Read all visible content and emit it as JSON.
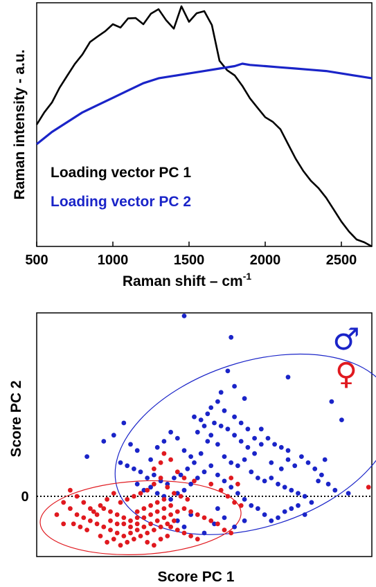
{
  "chart_data": [
    {
      "type": "line",
      "xlabel": "Raman shift – cm",
      "xlabel_sup": "-1",
      "ylabel": "Raman intensity  -  a.u.",
      "xlim": [
        500,
        2700
      ],
      "ylim": [
        0,
        1
      ],
      "x_ticks": [
        "500",
        "1000",
        "1500",
        "2000",
        "2500"
      ],
      "grid": false,
      "legend_position": "center-left",
      "series": [
        {
          "name": "Loading vector PC 1",
          "color": "#000000",
          "x": [
            500,
            550,
            600,
            650,
            700,
            750,
            800,
            850,
            900,
            950,
            1000,
            1050,
            1100,
            1150,
            1200,
            1250,
            1300,
            1350,
            1400,
            1450,
            1500,
            1550,
            1600,
            1650,
            1700,
            1750,
            1800,
            1850,
            1900,
            1950,
            2000,
            2050,
            2100,
            2150,
            2200,
            2250,
            2300,
            2350,
            2400,
            2450,
            2500,
            2550,
            2600,
            2650,
            2700
          ],
          "y": [
            0.5,
            0.54,
            0.58,
            0.65,
            0.71,
            0.76,
            0.79,
            0.83,
            0.85,
            0.88,
            0.92,
            0.91,
            0.94,
            0.93,
            0.9,
            0.95,
            0.98,
            0.94,
            0.9,
            0.98,
            0.91,
            0.95,
            0.97,
            0.92,
            0.77,
            0.72,
            0.69,
            0.65,
            0.61,
            0.58,
            0.54,
            0.51,
            0.47,
            0.41,
            0.36,
            0.32,
            0.28,
            0.24,
            0.19,
            0.14,
            0.1,
            0.07,
            0.04,
            0.02,
            0.0
          ]
        },
        {
          "name": "Loading vector PC 2",
          "color": "#1a24c8",
          "x": [
            500,
            600,
            700,
            800,
            900,
            1000,
            1100,
            1200,
            1300,
            1400,
            1500,
            1600,
            1700,
            1800,
            1850,
            1900,
            2000,
            2100,
            2200,
            2300,
            2400,
            2500,
            2600,
            2700
          ],
          "y": [
            0.42,
            0.47,
            0.51,
            0.55,
            0.58,
            0.61,
            0.64,
            0.67,
            0.69,
            0.7,
            0.71,
            0.72,
            0.73,
            0.74,
            0.75,
            0.745,
            0.74,
            0.735,
            0.73,
            0.725,
            0.72,
            0.71,
            0.7,
            0.69
          ]
        }
      ]
    },
    {
      "type": "scatter",
      "xlabel": "Score PC 1",
      "ylabel": "Score PC 2",
      "xlim": [
        0,
        100
      ],
      "ylim": [
        -1.0,
        3.0
      ],
      "y_ticks": [
        "0"
      ],
      "zero_line": "dotted",
      "legend_symbols": [
        "♂",
        "♀"
      ],
      "series": [
        {
          "name": "♂",
          "color": "#1a24c8",
          "ellipse": {
            "cx": 65,
            "cy": 0.85,
            "rx": 43,
            "ry": 1.35,
            "angle": -18
          },
          "points": [
            [
              44,
              2.95
            ],
            [
              58,
              2.6
            ],
            [
              75,
              1.95
            ],
            [
              91,
              1.25
            ],
            [
              88,
              1.55
            ],
            [
              57,
              2.05
            ],
            [
              52,
              1.45
            ],
            [
              55,
              1.7
            ],
            [
              59,
              1.8
            ],
            [
              62,
              1.6
            ],
            [
              47,
              1.3
            ],
            [
              49,
              1.25
            ],
            [
              52,
              1.0
            ],
            [
              54,
              0.85
            ],
            [
              56,
              0.65
            ],
            [
              58,
              0.55
            ],
            [
              60,
              0.5
            ],
            [
              62,
              0.6
            ],
            [
              64,
              0.4
            ],
            [
              66,
              0.3
            ],
            [
              68,
              0.25
            ],
            [
              70,
              0.3
            ],
            [
              72,
              0.2
            ],
            [
              74,
              0.15
            ],
            [
              76,
              0.1
            ],
            [
              78,
              0.05
            ],
            [
              80,
              0.0
            ],
            [
              82,
              -0.1
            ],
            [
              70,
              0.55
            ],
            [
              73,
              0.45
            ],
            [
              75,
              0.6
            ],
            [
              77,
              0.5
            ],
            [
              65,
              0.7
            ],
            [
              63,
              0.8
            ],
            [
              61,
              0.9
            ],
            [
              59,
              1.0
            ],
            [
              57,
              1.1
            ],
            [
              55,
              1.15
            ],
            [
              53,
              1.2
            ],
            [
              51,
              0.9
            ],
            [
              49,
              0.7
            ],
            [
              47,
              0.55
            ],
            [
              45,
              0.45
            ],
            [
              43,
              0.35
            ],
            [
              41,
              0.3
            ],
            [
              39,
              0.2
            ],
            [
              37,
              0.25
            ],
            [
              35,
              0.35
            ],
            [
              33,
              0.3
            ],
            [
              31,
              0.4
            ],
            [
              29,
              0.45
            ],
            [
              27,
              0.5
            ],
            [
              25,
              0.55
            ],
            [
              30,
              0.2
            ],
            [
              32,
              0.1
            ],
            [
              34,
              0.15
            ],
            [
              36,
              0.05
            ],
            [
              38,
              0.0
            ],
            [
              40,
              -0.05
            ],
            [
              42,
              0.05
            ],
            [
              44,
              0.1
            ],
            [
              46,
              0.2
            ],
            [
              48,
              0.3
            ],
            [
              50,
              0.4
            ],
            [
              52,
              0.5
            ],
            [
              54,
              0.35
            ],
            [
              56,
              0.25
            ],
            [
              58,
              0.15
            ],
            [
              60,
              0.05
            ],
            [
              62,
              -0.05
            ],
            [
              64,
              -0.15
            ],
            [
              66,
              -0.2
            ],
            [
              68,
              -0.3
            ],
            [
              70,
              -0.4
            ],
            [
              72,
              -0.35
            ],
            [
              74,
              -0.25
            ],
            [
              76,
              -0.2
            ],
            [
              78,
              -0.15
            ],
            [
              80,
              -0.3
            ],
            [
              67,
              1.1
            ],
            [
              69,
              0.95
            ],
            [
              71,
              0.85
            ],
            [
              73,
              0.8
            ],
            [
              75,
              0.75
            ],
            [
              79,
              0.65
            ],
            [
              81,
              0.55
            ],
            [
              83,
              0.45
            ],
            [
              85,
              0.35
            ],
            [
              87,
              0.2
            ],
            [
              89,
              0.1
            ],
            [
              84,
              0.25
            ],
            [
              86,
              0.6
            ],
            [
              93,
              0.05
            ],
            [
              15,
              0.65
            ],
            [
              20,
              0.9
            ],
            [
              23,
              1.0
            ],
            [
              26,
              1.2
            ],
            [
              28,
              0.85
            ],
            [
              30,
              0.75
            ],
            [
              34,
              0.6
            ],
            [
              36,
              0.8
            ],
            [
              38,
              0.9
            ],
            [
              40,
              1.05
            ],
            [
              42,
              0.95
            ],
            [
              44,
              0.75
            ],
            [
              46,
              0.65
            ],
            [
              48,
              1.05
            ],
            [
              50,
              1.15
            ],
            [
              51,
              1.35
            ],
            [
              54,
              1.55
            ],
            [
              56,
              1.4
            ],
            [
              59,
              1.3
            ],
            [
              61,
              1.2
            ],
            [
              63,
              1.1
            ],
            [
              65,
              0.95
            ],
            [
              67,
              0.85
            ],
            [
              42,
              -0.4
            ],
            [
              44,
              -0.5
            ],
            [
              46,
              -0.3
            ],
            [
              50,
              -0.6
            ],
            [
              53,
              -0.45
            ],
            [
              56,
              -0.35
            ],
            [
              59,
              -0.5
            ],
            [
              62,
              -0.4
            ],
            [
              54,
              -0.2
            ]
          ]
        },
        {
          "name": "♀",
          "color": "#e0191f",
          "ellipse": {
            "cx": 31,
            "cy": -0.35,
            "rx": 30,
            "ry": 0.6,
            "angle": -3
          },
          "points": [
            [
              8,
              -0.1
            ],
            [
              10,
              -0.2
            ],
            [
              12,
              -0.3
            ],
            [
              14,
              -0.35
            ],
            [
              16,
              -0.4
            ],
            [
              18,
              -0.45
            ],
            [
              20,
              -0.5
            ],
            [
              22,
              -0.55
            ],
            [
              24,
              -0.6
            ],
            [
              26,
              -0.65
            ],
            [
              28,
              -0.6
            ],
            [
              30,
              -0.55
            ],
            [
              32,
              -0.5
            ],
            [
              34,
              -0.45
            ],
            [
              36,
              -0.4
            ],
            [
              38,
              -0.35
            ],
            [
              40,
              -0.3
            ],
            [
              42,
              -0.25
            ],
            [
              44,
              -0.2
            ],
            [
              46,
              -0.25
            ],
            [
              48,
              -0.3
            ],
            [
              50,
              -0.35
            ],
            [
              52,
              -0.4
            ],
            [
              54,
              -0.45
            ],
            [
              56,
              -0.55
            ],
            [
              58,
              -0.6
            ],
            [
              20,
              -0.2
            ],
            [
              22,
              -0.25
            ],
            [
              24,
              -0.3
            ],
            [
              26,
              -0.35
            ],
            [
              28,
              -0.4
            ],
            [
              30,
              -0.45
            ],
            [
              32,
              -0.35
            ],
            [
              34,
              -0.3
            ],
            [
              36,
              -0.25
            ],
            [
              38,
              -0.2
            ],
            [
              40,
              -0.5
            ],
            [
              42,
              -0.55
            ],
            [
              44,
              -0.6
            ],
            [
              46,
              -0.65
            ],
            [
              48,
              -0.7
            ],
            [
              25,
              -0.1
            ],
            [
              27,
              -0.05
            ],
            [
              29,
              0.0
            ],
            [
              31,
              0.05
            ],
            [
              33,
              0.1
            ],
            [
              35,
              0.2
            ],
            [
              37,
              0.3
            ],
            [
              39,
              0.15
            ],
            [
              41,
              0.05
            ],
            [
              43,
              0.0
            ],
            [
              45,
              -0.05
            ],
            [
              19,
              -0.65
            ],
            [
              21,
              -0.75
            ],
            [
              23,
              -0.7
            ],
            [
              25,
              -0.8
            ],
            [
              27,
              -0.75
            ],
            [
              29,
              -0.7
            ],
            [
              31,
              -0.65
            ],
            [
              33,
              -0.75
            ],
            [
              35,
              -0.8
            ],
            [
              37,
              -0.7
            ],
            [
              39,
              -0.65
            ],
            [
              15,
              -0.55
            ],
            [
              13,
              -0.5
            ],
            [
              11,
              -0.45
            ],
            [
              17,
              -0.25
            ],
            [
              19,
              -0.15
            ],
            [
              21,
              -0.05
            ],
            [
              23,
              0.05
            ],
            [
              35,
              0.45
            ],
            [
              37,
              0.55
            ],
            [
              38,
              0.7
            ],
            [
              40,
              0.6
            ],
            [
              42,
              0.4
            ],
            [
              44,
              0.3
            ],
            [
              47,
              0.25
            ],
            [
              52,
              0.2
            ],
            [
              55,
              0.1
            ],
            [
              57,
              0.0
            ],
            [
              59,
              -0.1
            ],
            [
              61,
              -0.15
            ],
            [
              60,
              0.2
            ],
            [
              58,
              0.3
            ],
            [
              30,
              -0.25
            ],
            [
              32,
              -0.2
            ],
            [
              34,
              -0.15
            ],
            [
              36,
              -0.1
            ],
            [
              38,
              -0.05
            ],
            [
              40,
              -0.15
            ],
            [
              26,
              -0.45
            ],
            [
              28,
              -0.5
            ],
            [
              30,
              -0.35
            ],
            [
              24,
              -0.45
            ],
            [
              22,
              -0.4
            ],
            [
              18,
              -0.3
            ],
            [
              16,
              -0.2
            ],
            [
              14,
              -0.1
            ],
            [
              12,
              0.0
            ],
            [
              10,
              0.1
            ],
            [
              6,
              -0.3
            ],
            [
              8,
              -0.45
            ],
            [
              99,
              0.15
            ],
            [
              33,
              -0.6
            ],
            [
              35,
              -0.55
            ],
            [
              37,
              -0.5
            ],
            [
              39,
              -0.45
            ],
            [
              41,
              -0.4
            ]
          ]
        }
      ]
    }
  ]
}
